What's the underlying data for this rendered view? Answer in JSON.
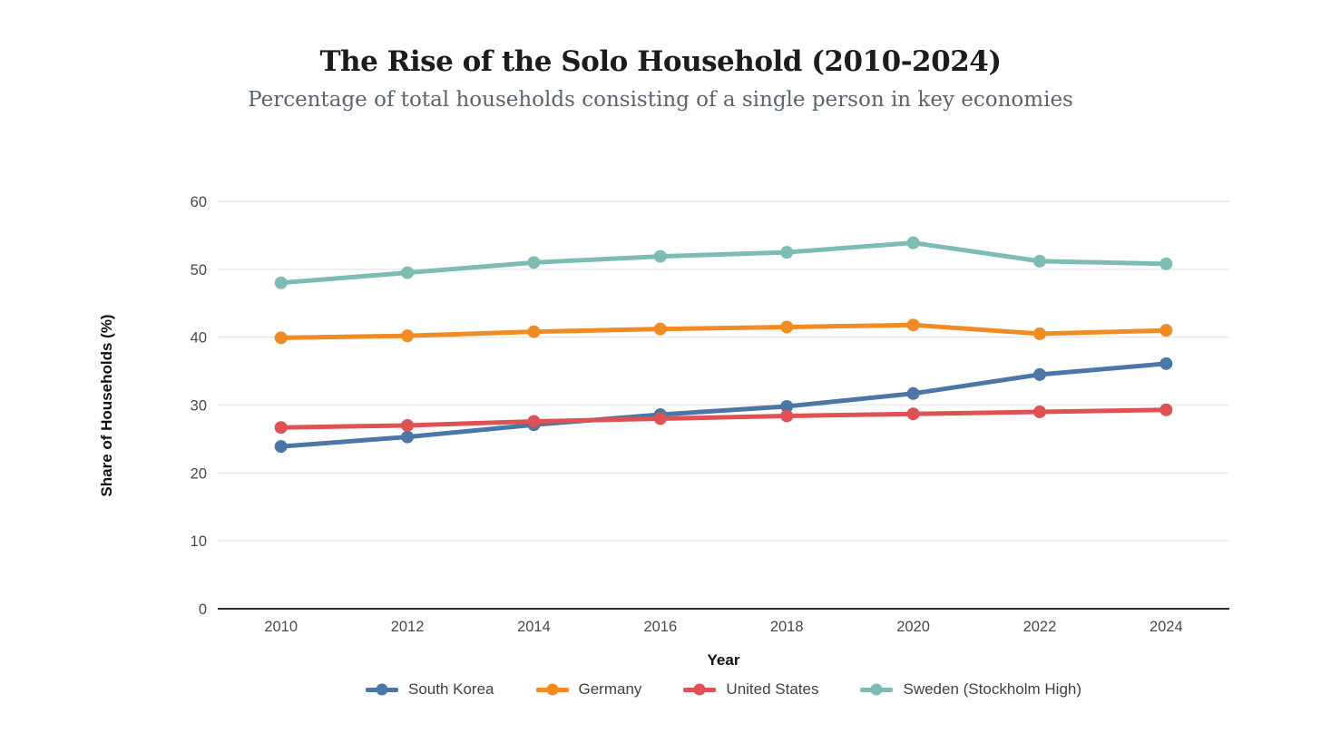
{
  "header": {
    "title": "The Rise of the Solo Household (2010-2024)",
    "subtitle": "Percentage of total households consisting of a single person in key economies"
  },
  "chart_data": {
    "type": "line",
    "title": "The Rise of the Solo Household (2010-2024)",
    "subtitle": "Percentage of total households consisting of a single person in key economies",
    "xlabel": "Year",
    "ylabel": "Share of Households (%)",
    "categories": [
      "2010",
      "2012",
      "2014",
      "2016",
      "2018",
      "2020",
      "2022",
      "2024"
    ],
    "series": [
      {
        "name": "South Korea",
        "color": "#4a77a8",
        "values": [
          23.9,
          25.3,
          27.1,
          28.6,
          29.8,
          31.7,
          34.5,
          36.1
        ]
      },
      {
        "name": "Germany",
        "color": "#f18c25",
        "values": [
          39.9,
          40.2,
          40.8,
          41.2,
          41.5,
          41.8,
          40.5,
          41.0
        ]
      },
      {
        "name": "United States",
        "color": "#df5152",
        "values": [
          26.7,
          27.0,
          27.6,
          28.0,
          28.4,
          28.7,
          29.0,
          29.3
        ]
      },
      {
        "name": "Sweden (Stockholm High)",
        "color": "#7cbcb5",
        "values": [
          48.0,
          49.5,
          51.0,
          51.9,
          52.5,
          53.9,
          51.2,
          50.8
        ]
      }
    ],
    "ylim": [
      0,
      60
    ],
    "yticks": [
      0,
      10,
      20,
      30,
      40,
      50,
      60
    ],
    "grid": true,
    "legend_position": "bottom",
    "marker": "circle"
  },
  "style_colors": {
    "background": "#ffffff",
    "gridline": "#e9e9e9",
    "axis_line": "#2d2d2d",
    "tick_label": "#44494f",
    "title": "#1c1c1c",
    "subtitle": "#5b6472",
    "legend_text": "#3e4248"
  }
}
